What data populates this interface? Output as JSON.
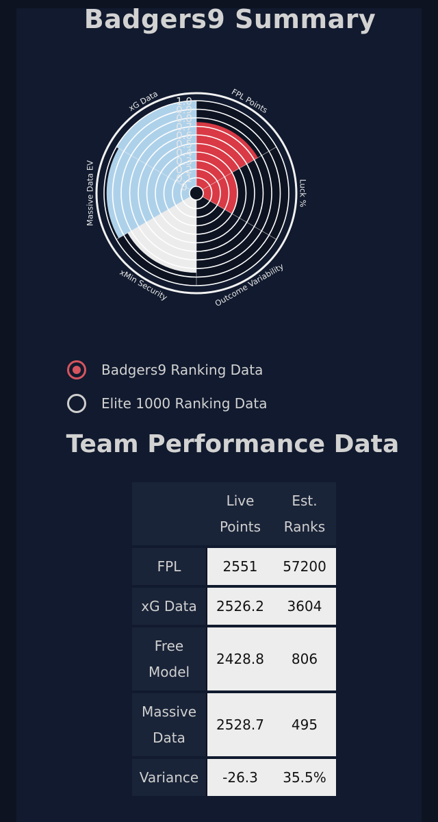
{
  "header": {
    "title": "Badgers9 Summary"
  },
  "chart_data": {
    "type": "polar_bar",
    "categories": [
      "FPL Points",
      "Luck %",
      "Outcome Variability",
      "xMin Security",
      "Massive Data EV",
      "xG Data"
    ],
    "values": [
      0.75,
      0.4,
      0.0,
      0.85,
      0.97,
      1.0
    ],
    "colors": [
      "#d93a45",
      "#d93a45",
      "#d93a45",
      "#ececec",
      "#aed1ea",
      "#aed1ea"
    ],
    "radial_ticks": [
      "0",
      "0.1",
      "0.2",
      "0.3",
      "0.4",
      "0.5",
      "0.6",
      "0.7",
      "0.8",
      "0.9",
      "1.0"
    ],
    "rlim": [
      0,
      1.0
    ]
  },
  "ranking_options": [
    {
      "label": "Badgers9 Ranking Data",
      "selected": true
    },
    {
      "label": "Elite 1000 Ranking Data",
      "selected": false
    }
  ],
  "performance": {
    "title": "Team Performance Data",
    "columns": [
      "Live Points",
      "Est. Ranks"
    ],
    "rows": [
      {
        "label": "FPL",
        "live": "2551",
        "rank": "57200"
      },
      {
        "label": "xG Data",
        "live": "2526.2",
        "rank": "3604"
      },
      {
        "label": "Free Model",
        "live": "2428.8",
        "rank": "806"
      },
      {
        "label": "Massive Data",
        "live": "2528.7",
        "rank": "495"
      },
      {
        "label": "Variance",
        "live": "-26.3",
        "rank": "35.5%"
      }
    ]
  }
}
